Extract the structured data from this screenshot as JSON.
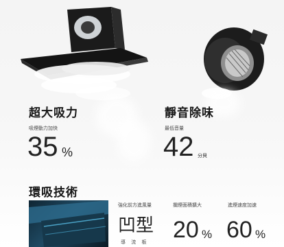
{
  "sections": {
    "quiet_power": {
      "title": "超大吸力",
      "caption": "吸煙動力加快",
      "value": "35",
      "unit": "%"
    },
    "low_noise": {
      "title": "靜音除味",
      "caption": "最低音量",
      "value": "42",
      "unit": "分貝"
    },
    "airflow_tech": {
      "title": "環吸技術",
      "features": [
        {
          "caption": "強化前方進風量",
          "value": "凹型",
          "subvalue": "導 流 板"
        },
        {
          "caption": "攔煙面積擴大",
          "value": "20",
          "unit": "%"
        },
        {
          "caption": "進煙速度加速",
          "value": "60",
          "unit": "%"
        }
      ]
    }
  },
  "colors": {
    "hood_body": "#1b1b1b",
    "motor_housing": "#2a2a2a",
    "accent_metal": "#b8b8b8",
    "thumb_blue": "#1f4a63"
  },
  "icons": {
    "hood": "range-hood-illustration",
    "fan": "blower-motor-illustration",
    "panel": "vent-panel-photo"
  }
}
